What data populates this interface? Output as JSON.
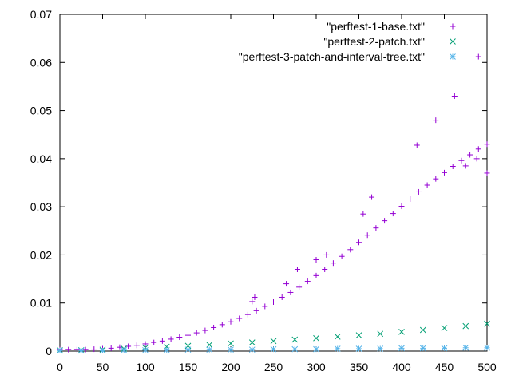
{
  "chart_data": {
    "type": "scatter",
    "title": "",
    "xlabel": "",
    "ylabel": "",
    "xlim": [
      0,
      500
    ],
    "ylim": [
      0,
      0.07
    ],
    "x_ticks": [
      0,
      50,
      100,
      150,
      200,
      250,
      300,
      350,
      400,
      450,
      500
    ],
    "x_tick_labels": [
      "0",
      "50",
      "100",
      "150",
      "200",
      "250",
      "300",
      "350",
      "400",
      "450",
      "500"
    ],
    "y_ticks": [
      0,
      0.01,
      0.02,
      0.03,
      0.04,
      0.05,
      0.06,
      0.07
    ],
    "y_tick_labels": [
      "0",
      "0.01",
      "0.02",
      "0.03",
      "0.04",
      "0.05",
      "0.06",
      "0.07"
    ],
    "grid": false,
    "legend_position": "top-right",
    "series": [
      {
        "name": "\"perftest-1-base.txt\"",
        "marker": "plus",
        "color": "#9400d3",
        "points": [
          [
            0,
            0.0003
          ],
          [
            10,
            0.0003
          ],
          [
            20,
            0.0003
          ],
          [
            30,
            0.0003
          ],
          [
            40,
            0.0004
          ],
          [
            50,
            0.0005
          ],
          [
            60,
            0.0006
          ],
          [
            70,
            0.0008
          ],
          [
            80,
            0.001
          ],
          [
            90,
            0.0012
          ],
          [
            100,
            0.0015
          ],
          [
            110,
            0.0018
          ],
          [
            120,
            0.0021
          ],
          [
            130,
            0.0025
          ],
          [
            140,
            0.0029
          ],
          [
            150,
            0.0033
          ],
          [
            160,
            0.0038
          ],
          [
            170,
            0.0043
          ],
          [
            180,
            0.0049
          ],
          [
            190,
            0.0055
          ],
          [
            200,
            0.0061
          ],
          [
            210,
            0.0068
          ],
          [
            220,
            0.0076
          ],
          [
            230,
            0.0084
          ],
          [
            240,
            0.0093
          ],
          [
            250,
            0.0102
          ],
          [
            260,
            0.0112
          ],
          [
            270,
            0.0122
          ],
          [
            280,
            0.0133
          ],
          [
            290,
            0.0145
          ],
          [
            300,
            0.0157
          ],
          [
            310,
            0.017
          ],
          [
            320,
            0.0183
          ],
          [
            330,
            0.0197
          ],
          [
            340,
            0.0211
          ],
          [
            350,
            0.0226
          ],
          [
            360,
            0.0241
          ],
          [
            370,
            0.0256
          ],
          [
            380,
            0.0271
          ],
          [
            390,
            0.0286
          ],
          [
            400,
            0.0301
          ],
          [
            410,
            0.0316
          ],
          [
            420,
            0.0331
          ],
          [
            430,
            0.0345
          ],
          [
            440,
            0.0358
          ],
          [
            450,
            0.0371
          ],
          [
            460,
            0.0384
          ],
          [
            470,
            0.0396
          ],
          [
            480,
            0.0408
          ],
          [
            490,
            0.042
          ],
          [
            500,
            0.043
          ],
          [
            225,
            0.0103
          ],
          [
            228,
            0.0112
          ],
          [
            265,
            0.014
          ],
          [
            278,
            0.017
          ],
          [
            300,
            0.019
          ],
          [
            312,
            0.02
          ],
          [
            355,
            0.0285
          ],
          [
            365,
            0.032
          ],
          [
            418,
            0.0428
          ],
          [
            440,
            0.048
          ],
          [
            462,
            0.053
          ],
          [
            490,
            0.0612
          ],
          [
            488,
            0.04
          ],
          [
            475,
            0.0385
          ],
          [
            500,
            0.037
          ]
        ]
      },
      {
        "name": "\"perftest-2-patch.txt\"",
        "marker": "cross",
        "color": "#009e73",
        "points": [
          [
            0,
            0.0002
          ],
          [
            25,
            0.0002
          ],
          [
            50,
            0.0003
          ],
          [
            75,
            0.0005
          ],
          [
            100,
            0.0007
          ],
          [
            125,
            0.0009
          ],
          [
            150,
            0.0011
          ],
          [
            175,
            0.0013
          ],
          [
            200,
            0.0016
          ],
          [
            225,
            0.0018
          ],
          [
            250,
            0.0021
          ],
          [
            275,
            0.0024
          ],
          [
            300,
            0.0027
          ],
          [
            325,
            0.003
          ],
          [
            350,
            0.0033
          ],
          [
            375,
            0.0036
          ],
          [
            400,
            0.004
          ],
          [
            425,
            0.0044
          ],
          [
            450,
            0.0048
          ],
          [
            475,
            0.0052
          ],
          [
            500,
            0.0057
          ]
        ]
      },
      {
        "name": "\"perftest-3-patch-and-interval-tree.txt\"",
        "marker": "star",
        "color": "#56b4e9",
        "points": [
          [
            0,
            0.0001
          ],
          [
            25,
            0.0001
          ],
          [
            50,
            0.0001
          ],
          [
            75,
            0.0002
          ],
          [
            100,
            0.0002
          ],
          [
            125,
            0.0002
          ],
          [
            150,
            0.0003
          ],
          [
            175,
            0.0003
          ],
          [
            200,
            0.0003
          ],
          [
            225,
            0.0003
          ],
          [
            250,
            0.0004
          ],
          [
            275,
            0.0004
          ],
          [
            300,
            0.0004
          ],
          [
            325,
            0.0005
          ],
          [
            350,
            0.0005
          ],
          [
            375,
            0.0005
          ],
          [
            400,
            0.0006
          ],
          [
            425,
            0.0006
          ],
          [
            450,
            0.0006
          ],
          [
            475,
            0.0007
          ],
          [
            500,
            0.0007
          ]
        ]
      }
    ]
  }
}
